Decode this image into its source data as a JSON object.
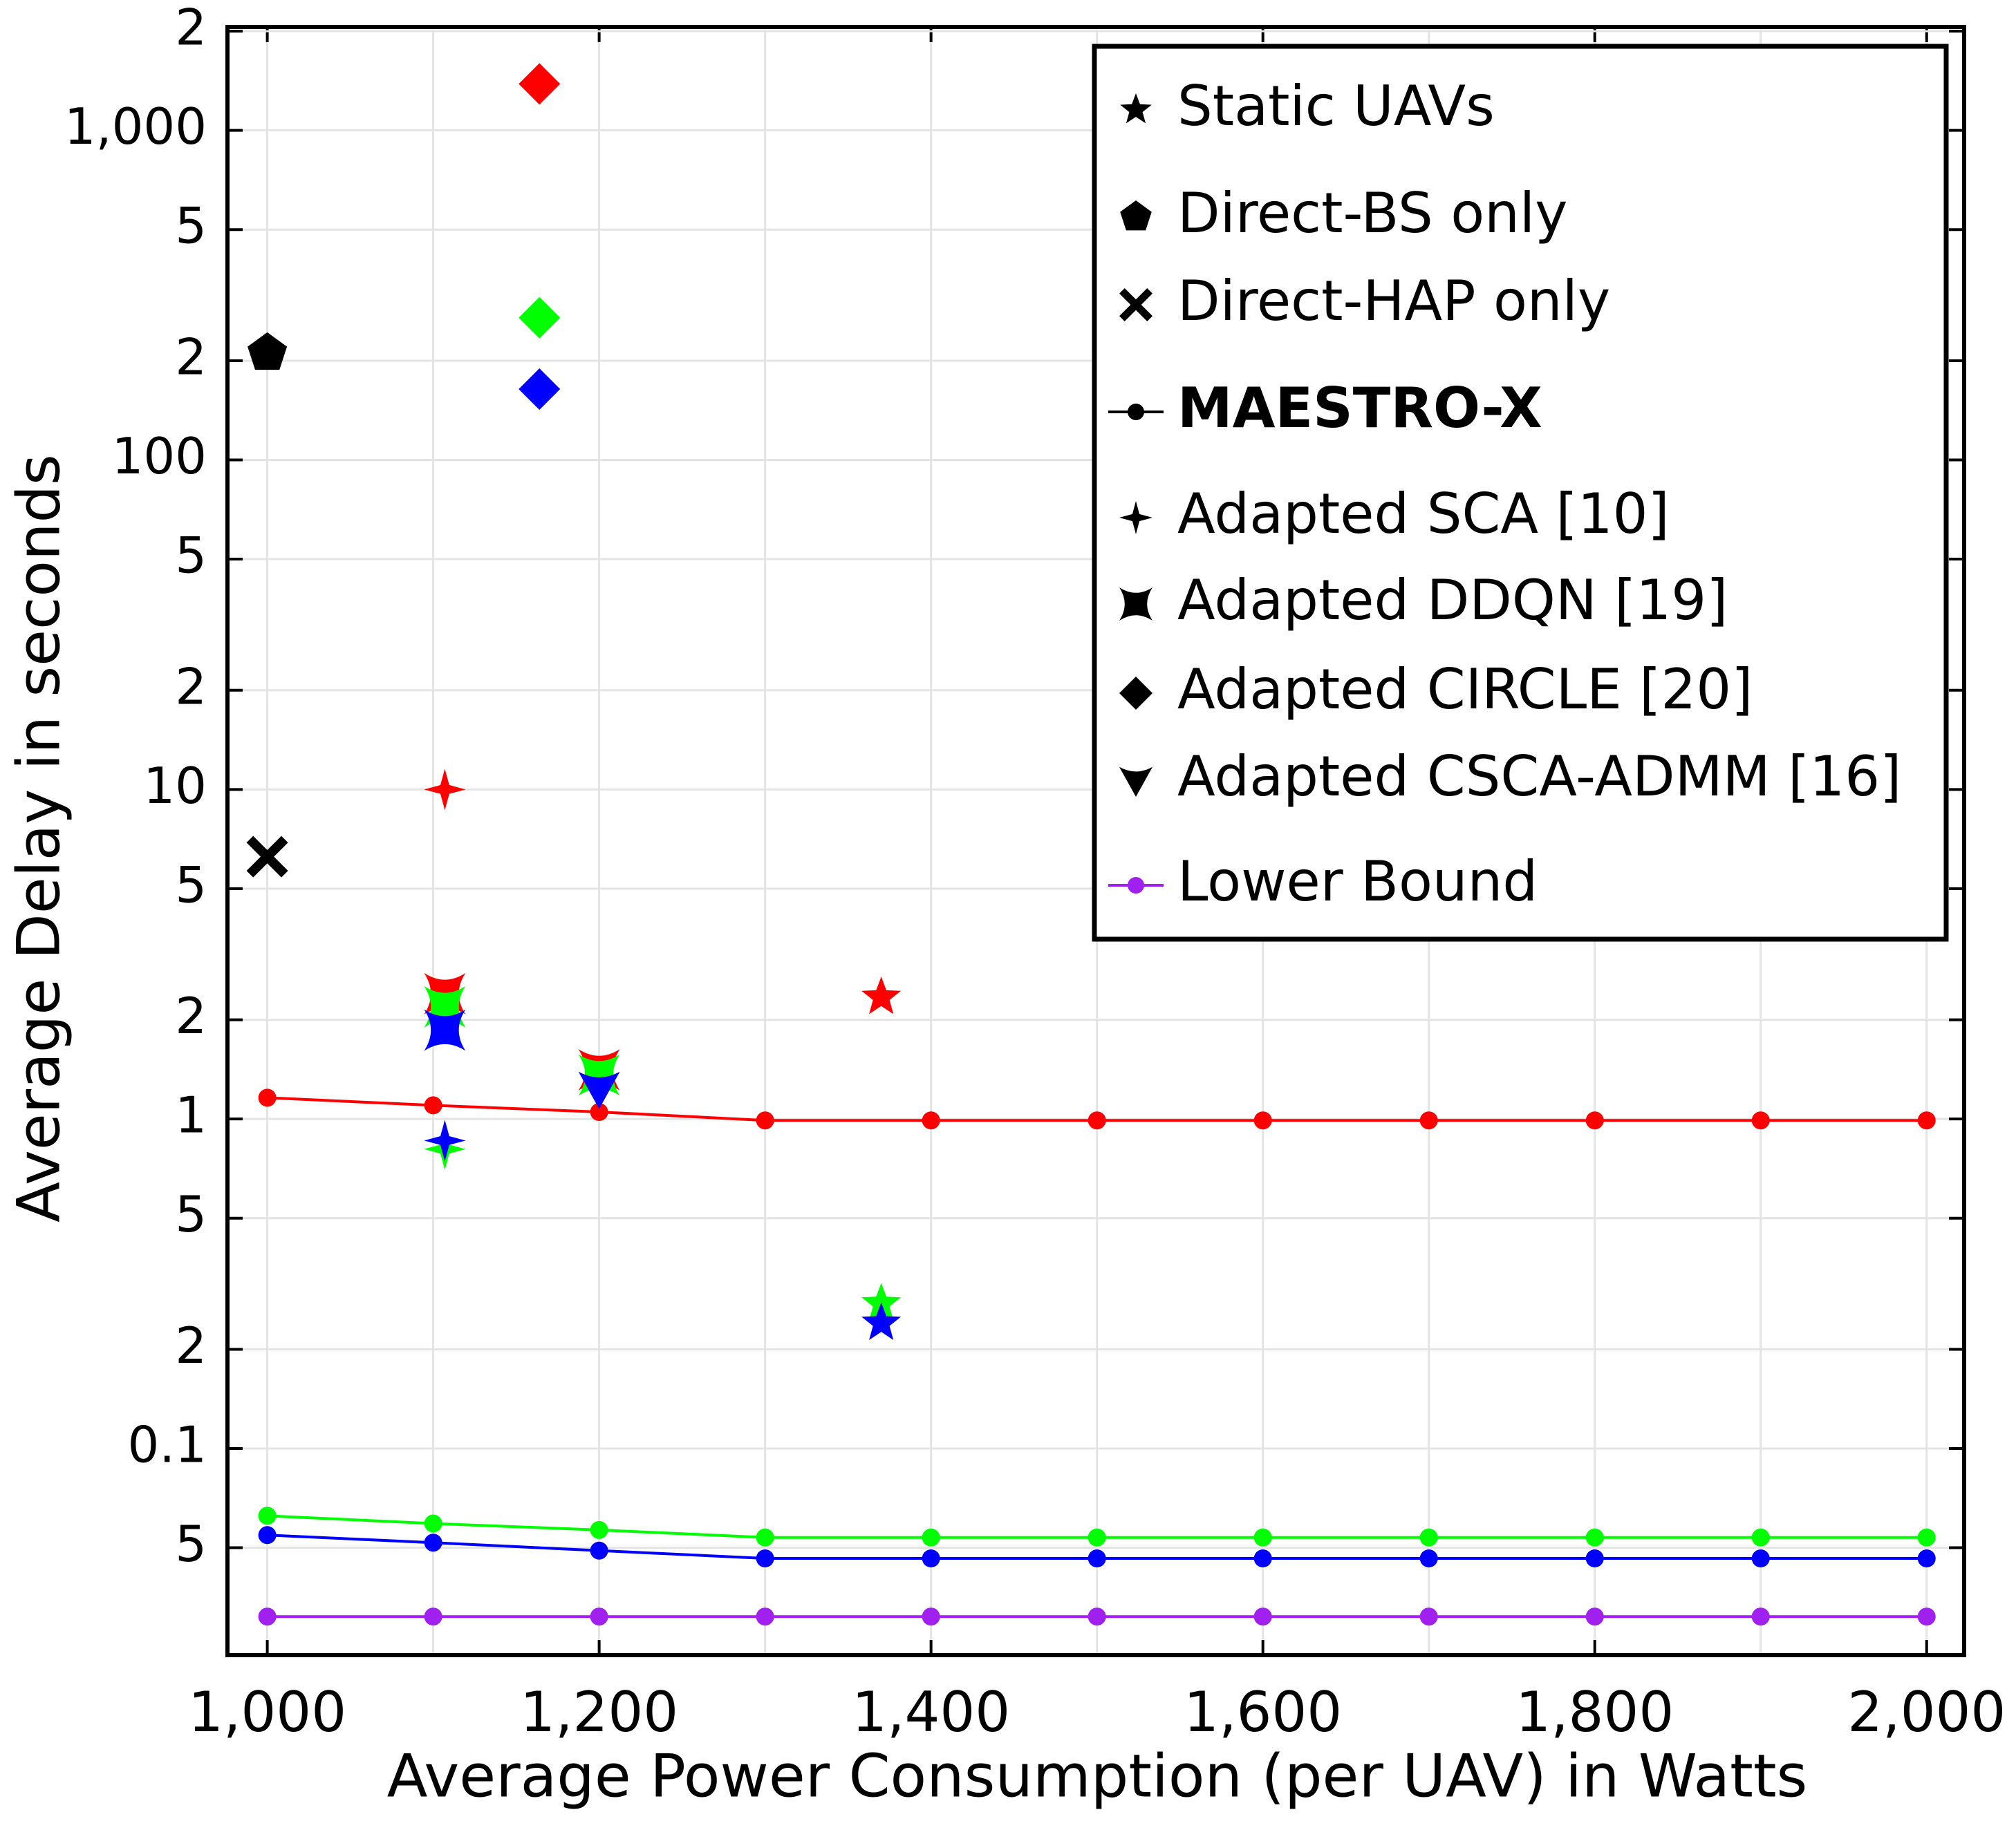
{
  "chart_data": {
    "type": "line",
    "x_label": "Average Power Consumption (per UAV) in Watts",
    "y_label": "Average Delay in seconds",
    "y_scale": "log",
    "grid": true,
    "legend_position": "upper right",
    "xlim": [
      976,
      2022.6
    ],
    "ylim": [
      0.0236,
      2060
    ],
    "xticks": [
      {
        "value": 1000,
        "label": "1,000"
      },
      {
        "value": 1200,
        "label": "1,200"
      },
      {
        "value": 1400,
        "label": "1,400"
      },
      {
        "value": 1600,
        "label": "1,600"
      },
      {
        "value": 1800,
        "label": "1,800"
      },
      {
        "value": 2000,
        "label": "2,000"
      }
    ],
    "x_minor_grid": [
      1100,
      1300,
      1500,
      1700,
      1900
    ],
    "yticks": [
      {
        "value": 2000,
        "label": "2"
      },
      {
        "value": 1000,
        "label": "1,000"
      },
      {
        "value": 500,
        "label": "5"
      },
      {
        "value": 200,
        "label": "2"
      },
      100,
      {
        "value": 50,
        "label": "5"
      },
      {
        "value": 20,
        "label": "2"
      },
      10,
      5,
      2,
      1,
      {
        "value": 0.5,
        "label": "5"
      },
      {
        "value": 0.2,
        "label": "2"
      },
      0.1,
      {
        "value": 0.05,
        "label": "5"
      }
    ],
    "x": [
      1000,
      1100,
      1200,
      1300,
      1400,
      1500,
      1600,
      1700,
      1800,
      1900,
      2000
    ],
    "series": [
      {
        "name": "Static UAVs",
        "marker": "star",
        "color": "#000000",
        "x": [
          1370,
          1370,
          1370
        ],
        "values": [
          2.34,
          0.275,
          0.24
        ],
        "colors": [
          "#ff0000",
          "#00ff00",
          "#0000ff"
        ]
      },
      {
        "name": "Direct-BS only",
        "marker": "pentagon",
        "color": "#000000",
        "x": [
          1000
        ],
        "values": [
          211
        ],
        "colors": [
          "#000000"
        ]
      },
      {
        "name": "Direct-HAP only",
        "marker": "cross",
        "color": "#000000",
        "x": [
          1000
        ],
        "values": [
          6.25
        ],
        "colors": [
          "#000000"
        ]
      },
      {
        "name": "MAESTRO-X",
        "marker": "dot-line",
        "color": "#000000",
        "bold": true,
        "lines": [
          {
            "color": "#ff0000",
            "values": [
              1.16,
              1.1,
              1.05,
              0.99,
              0.99,
              0.99,
              0.99,
              0.99,
              0.99,
              0.99,
              0.99
            ]
          },
          {
            "color": "#00ff00",
            "values": [
              0.0625,
              0.0592,
              0.0566,
              0.0537,
              0.0537,
              0.0537,
              0.0537,
              0.0537,
              0.0537,
              0.0537,
              0.0537
            ]
          },
          {
            "color": "#0000ff",
            "values": [
              0.0546,
              0.0518,
              0.049,
              0.0464,
              0.0464,
              0.0464,
              0.0464,
              0.0464,
              0.0464,
              0.0464,
              0.0464
            ]
          }
        ]
      },
      {
        "name": "Adapted SCA [10]",
        "marker": "star4",
        "color": "#000000",
        "x": [
          1107,
          1107,
          1107
        ],
        "values": [
          10,
          0.81,
          0.86
        ],
        "colors": [
          "#ff0000",
          "#00ff00",
          "#0000ff"
        ]
      },
      {
        "name": "Adapted DDQN [19]",
        "marker": "bowtie",
        "color": "#000000",
        "x": [
          1107,
          1107,
          1107,
          1200,
          1200
        ],
        "values": [
          2.4,
          2.19,
          1.86,
          1.41,
          1.36
        ],
        "colors": [
          "#ff0000",
          "#00ff00",
          "#0000ff",
          "#ff0000",
          "#00ff00"
        ]
      },
      {
        "name": "Adapted CIRCLE [20]",
        "marker": "diamond",
        "color": "#000000",
        "x": [
          1164,
          1164,
          1164
        ],
        "values": [
          1384,
          270,
          164
        ],
        "colors": [
          "#ff0000",
          "#00ff00",
          "#0000ff"
        ]
      },
      {
        "name": "Adapted CSCA-ADMM [16]",
        "marker": "triangle-down",
        "color": "#000000",
        "x": [
          1200
        ],
        "values": [
          1.24
        ],
        "colors": [
          "#0000ff"
        ]
      },
      {
        "name": "Lower Bound",
        "marker": "dot-line",
        "color": "#a020f0",
        "lines": [
          {
            "color": "#a020f0",
            "values": [
              0.0309,
              0.0309,
              0.0309,
              0.0309,
              0.0309,
              0.0309,
              0.0309,
              0.0309,
              0.0309,
              0.0309,
              0.0309
            ]
          }
        ]
      }
    ]
  }
}
